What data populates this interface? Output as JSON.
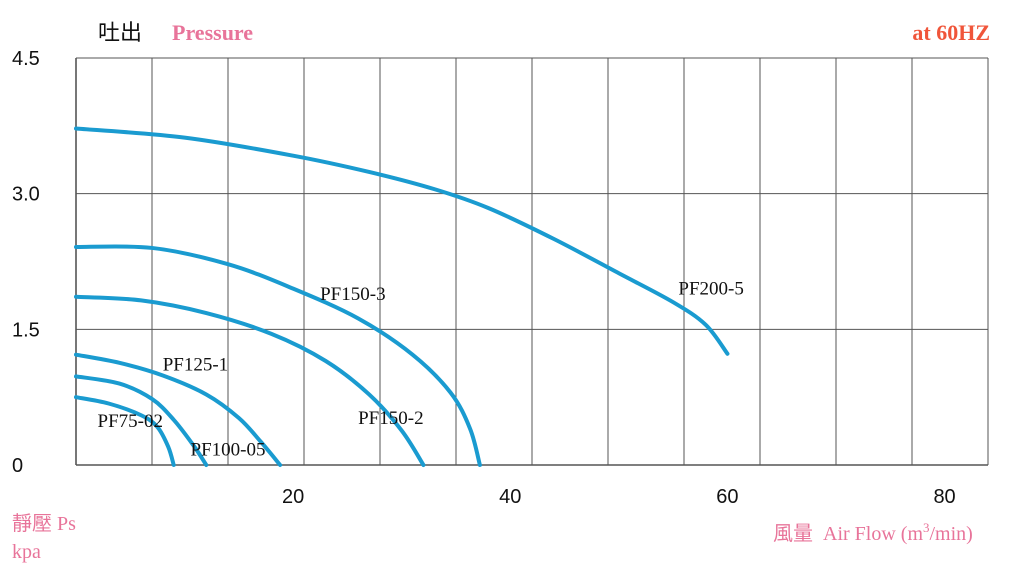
{
  "colors": {
    "curve": "#1a9bd0",
    "grid": "#555555",
    "pink": "#e8749a",
    "red_orange": "#f0553a",
    "text": "#111111"
  },
  "header": {
    "title_cn": "吐出",
    "title_en": "Pressure",
    "frequency": "at 60HZ"
  },
  "axes": {
    "y_label_cn": "靜壓 Ps",
    "y_unit": "kpa",
    "x_label_cn": "風量",
    "x_label_en": "Air Flow (m",
    "x_label_sup": "3",
    "x_label_end": "/min)"
  },
  "chart_data": {
    "type": "line",
    "title": "吐出 Pressure",
    "subtitle": "at 60HZ",
    "xlabel": "風量 Air Flow (m3/min)",
    "ylabel": "靜壓 Ps kpa",
    "xlim": [
      0,
      84
    ],
    "ylim": [
      0,
      4.5
    ],
    "x_ticks": [
      20,
      40,
      60,
      80
    ],
    "y_ticks": [
      0,
      1.5,
      3.0,
      4.5
    ],
    "y_tick_labels": [
      "0",
      "1.5",
      "3.0",
      "4.5"
    ],
    "grid": true,
    "series": [
      {
        "name": "PF75-02",
        "x": [
          0,
          3,
          6,
          7.5,
          8.5,
          9
        ],
        "y": [
          0.75,
          0.68,
          0.55,
          0.42,
          0.2,
          0.0
        ],
        "label_at": [
          5,
          0.5
        ]
      },
      {
        "name": "PF100-05",
        "x": [
          0,
          4,
          7,
          9,
          10.8,
          12
        ],
        "y": [
          0.98,
          0.9,
          0.73,
          0.5,
          0.22,
          0.0
        ],
        "label_at": [
          14,
          0.18
        ]
      },
      {
        "name": "PF125-1",
        "x": [
          0,
          4,
          8,
          12,
          15,
          17,
          18.8
        ],
        "y": [
          1.22,
          1.13,
          0.99,
          0.78,
          0.52,
          0.26,
          0.0
        ],
        "label_at": [
          11,
          1.12
        ]
      },
      {
        "name": "PF150-2",
        "x": [
          0,
          6,
          12,
          18,
          23,
          27,
          30,
          32
        ],
        "y": [
          1.86,
          1.82,
          1.68,
          1.45,
          1.15,
          0.78,
          0.38,
          0.0
        ],
        "label_at": [
          29,
          0.53
        ]
      },
      {
        "name": "PF150-3",
        "x": [
          0,
          7,
          14,
          20,
          26,
          31,
          34.5,
          36.3,
          37.2
        ],
        "y": [
          2.41,
          2.4,
          2.22,
          1.95,
          1.62,
          1.22,
          0.8,
          0.4,
          0.0
        ],
        "label_at": [
          25.5,
          1.9
        ]
      },
      {
        "name": "PF200-5",
        "x": [
          0,
          10,
          20,
          27,
          33,
          38,
          44,
          50,
          55,
          58,
          60
        ],
        "y": [
          3.72,
          3.62,
          3.42,
          3.24,
          3.05,
          2.84,
          2.5,
          2.12,
          1.8,
          1.55,
          1.23
        ],
        "label_at": [
          58.5,
          1.96
        ]
      }
    ]
  }
}
